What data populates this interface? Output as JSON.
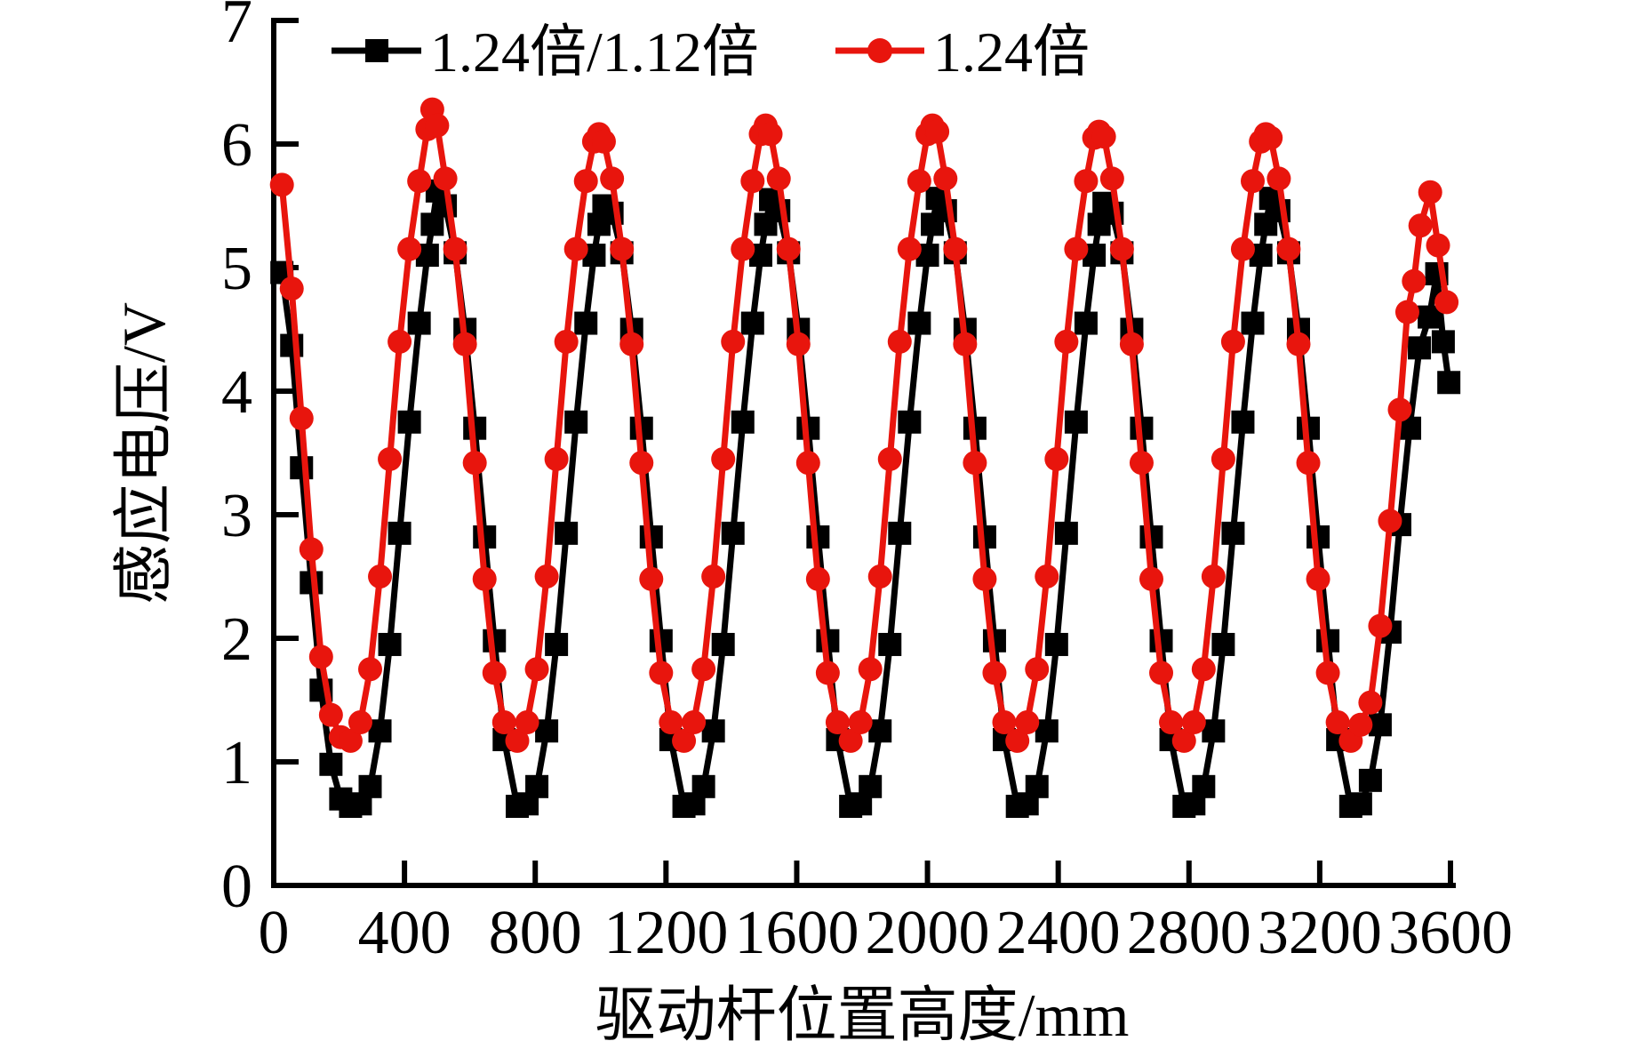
{
  "chart_data": {
    "type": "line",
    "title": "",
    "xlabel": "驱动杆位置高度/mm",
    "ylabel": "感应电压/V",
    "xlim": [
      0,
      3600
    ],
    "ylim": [
      0,
      7
    ],
    "x_ticks": [
      0,
      400,
      800,
      1200,
      1600,
      2000,
      2400,
      2800,
      3200,
      3600
    ],
    "y_ticks": [
      0,
      1,
      2,
      3,
      4,
      5,
      6,
      7
    ],
    "grid": false,
    "legend_position": "top-inside",
    "colors": {
      "series_black": "#000000",
      "series_red": "#e8150d"
    },
    "series": [
      {
        "name": "1.24倍/1.12倍",
        "color": "#000000",
        "marker": "square",
        "x": [
          25,
          55,
          85,
          115,
          145,
          175,
          205,
          235,
          265,
          295,
          325,
          355,
          385,
          415,
          445,
          470,
          485,
          500,
          525,
          555,
          585,
          615,
          645,
          675,
          705,
          745,
          775,
          805,
          835,
          865,
          895,
          925,
          955,
          980,
          995,
          1010,
          1035,
          1065,
          1095,
          1125,
          1155,
          1185,
          1215,
          1255,
          1285,
          1315,
          1345,
          1375,
          1405,
          1435,
          1465,
          1490,
          1505,
          1520,
          1545,
          1575,
          1605,
          1635,
          1665,
          1695,
          1725,
          1765,
          1795,
          1825,
          1855,
          1885,
          1915,
          1945,
          1975,
          2000,
          2015,
          2030,
          2055,
          2085,
          2115,
          2145,
          2175,
          2205,
          2235,
          2275,
          2305,
          2335,
          2365,
          2395,
          2425,
          2455,
          2485,
          2510,
          2525,
          2540,
          2565,
          2595,
          2625,
          2655,
          2685,
          2715,
          2745,
          2785,
          2815,
          2845,
          2875,
          2905,
          2935,
          2965,
          2995,
          3020,
          3035,
          3050,
          3075,
          3105,
          3135,
          3165,
          3195,
          3225,
          3255,
          3295,
          3325,
          3355,
          3385,
          3415,
          3445,
          3475,
          3505,
          3535,
          3558,
          3578,
          3595
        ],
        "y": [
          4.96,
          4.37,
          3.38,
          2.45,
          1.58,
          0.98,
          0.7,
          0.64,
          0.66,
          0.8,
          1.25,
          1.95,
          2.85,
          3.75,
          4.55,
          5.1,
          5.35,
          5.62,
          5.5,
          5.12,
          4.5,
          3.7,
          2.82,
          1.98,
          1.18,
          0.64,
          0.66,
          0.8,
          1.25,
          1.95,
          2.85,
          3.75,
          4.55,
          5.1,
          5.35,
          5.5,
          5.44,
          5.12,
          4.5,
          3.7,
          2.82,
          1.98,
          1.18,
          0.64,
          0.66,
          0.8,
          1.25,
          1.95,
          2.85,
          3.75,
          4.55,
          5.1,
          5.35,
          5.55,
          5.46,
          5.12,
          4.5,
          3.7,
          2.82,
          1.98,
          1.18,
          0.64,
          0.66,
          0.8,
          1.25,
          1.95,
          2.85,
          3.75,
          4.55,
          5.1,
          5.35,
          5.56,
          5.46,
          5.12,
          4.5,
          3.7,
          2.82,
          1.98,
          1.18,
          0.64,
          0.66,
          0.8,
          1.25,
          1.95,
          2.85,
          3.75,
          4.55,
          5.1,
          5.35,
          5.52,
          5.44,
          5.12,
          4.5,
          3.7,
          2.82,
          1.98,
          1.18,
          0.64,
          0.66,
          0.8,
          1.25,
          1.95,
          2.85,
          3.75,
          4.55,
          5.1,
          5.35,
          5.56,
          5.46,
          5.12,
          4.5,
          3.7,
          2.82,
          1.98,
          1.18,
          0.64,
          0.66,
          0.85,
          1.3,
          2.05,
          2.92,
          3.7,
          4.35,
          4.6,
          4.95,
          4.4,
          4.07
        ]
      },
      {
        "name": "1.24倍",
        "color": "#e8150d",
        "marker": "circle",
        "x": [
          25,
          55,
          85,
          115,
          145,
          175,
          205,
          235,
          265,
          295,
          325,
          355,
          385,
          415,
          445,
          470,
          485,
          500,
          525,
          555,
          585,
          615,
          645,
          675,
          705,
          745,
          775,
          805,
          835,
          865,
          895,
          925,
          955,
          980,
          995,
          1010,
          1035,
          1065,
          1095,
          1125,
          1155,
          1185,
          1215,
          1255,
          1285,
          1315,
          1345,
          1375,
          1405,
          1435,
          1465,
          1490,
          1505,
          1520,
          1545,
          1575,
          1605,
          1635,
          1665,
          1695,
          1725,
          1765,
          1795,
          1825,
          1855,
          1885,
          1915,
          1945,
          1975,
          2000,
          2015,
          2030,
          2055,
          2085,
          2115,
          2145,
          2175,
          2205,
          2235,
          2275,
          2305,
          2335,
          2365,
          2395,
          2425,
          2455,
          2485,
          2510,
          2525,
          2540,
          2565,
          2595,
          2625,
          2655,
          2685,
          2715,
          2745,
          2785,
          2815,
          2845,
          2875,
          2905,
          2935,
          2965,
          2995,
          3020,
          3035,
          3050,
          3075,
          3105,
          3135,
          3165,
          3195,
          3225,
          3255,
          3295,
          3325,
          3355,
          3385,
          3415,
          3445,
          3468,
          3488,
          3508,
          3538,
          3562,
          3588
        ],
        "y": [
          5.67,
          4.83,
          3.78,
          2.72,
          1.85,
          1.38,
          1.2,
          1.17,
          1.32,
          1.75,
          2.5,
          3.45,
          4.4,
          5.15,
          5.7,
          6.12,
          6.28,
          6.15,
          5.72,
          5.15,
          4.38,
          3.42,
          2.48,
          1.72,
          1.32,
          1.17,
          1.32,
          1.75,
          2.5,
          3.45,
          4.4,
          5.15,
          5.7,
          6.02,
          6.08,
          6.02,
          5.72,
          5.15,
          4.38,
          3.42,
          2.48,
          1.72,
          1.32,
          1.17,
          1.32,
          1.75,
          2.5,
          3.45,
          4.4,
          5.15,
          5.7,
          6.08,
          6.15,
          6.08,
          5.72,
          5.15,
          4.38,
          3.42,
          2.48,
          1.72,
          1.32,
          1.17,
          1.32,
          1.75,
          2.5,
          3.45,
          4.4,
          5.15,
          5.7,
          6.08,
          6.15,
          6.1,
          5.72,
          5.15,
          4.38,
          3.42,
          2.48,
          1.72,
          1.32,
          1.17,
          1.32,
          1.75,
          2.5,
          3.45,
          4.4,
          5.15,
          5.7,
          6.05,
          6.1,
          6.06,
          5.72,
          5.15,
          4.38,
          3.42,
          2.48,
          1.72,
          1.32,
          1.17,
          1.32,
          1.75,
          2.5,
          3.45,
          4.4,
          5.15,
          5.7,
          6.02,
          6.08,
          6.05,
          5.72,
          5.15,
          4.38,
          3.42,
          2.48,
          1.72,
          1.32,
          1.17,
          1.3,
          1.48,
          2.1,
          2.95,
          3.85,
          4.64,
          4.89,
          5.34,
          5.61,
          5.18,
          4.72
        ]
      }
    ]
  }
}
